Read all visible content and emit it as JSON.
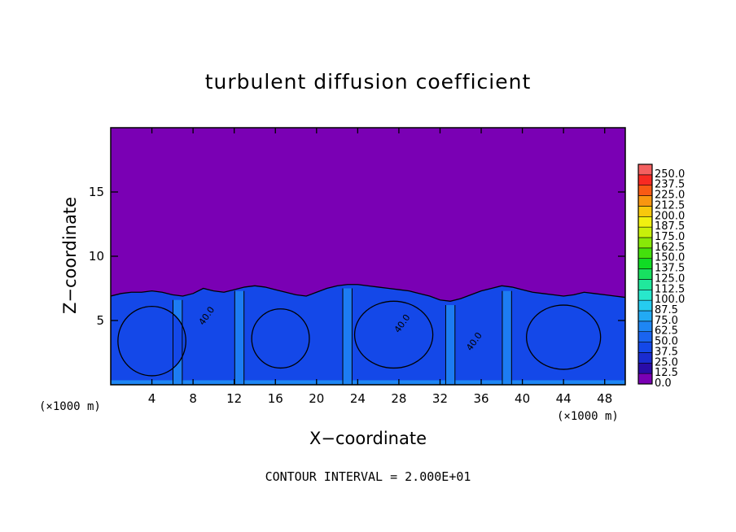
{
  "chart_data": {
    "type": "heatmap",
    "title": "turbulent diffusion coefficient",
    "xlabel": "X−coordinate",
    "ylabel": "Z−coordinate",
    "x_unit": "(×1000 m)",
    "z_unit": "(×1000 m)",
    "note": "CONTOUR INTERVAL = 2.000E+01",
    "xlim": [
      0,
      50
    ],
    "ylim": [
      0,
      20
    ],
    "x_ticks": [
      4,
      8,
      12,
      16,
      20,
      24,
      28,
      32,
      36,
      40,
      44,
      48
    ],
    "y_ticks": [
      5,
      10,
      15
    ],
    "contour_labels": [
      "40.0",
      "40.0",
      "40.0"
    ],
    "colorbar": {
      "levels": [
        "0.0",
        "12.5",
        "25.0",
        "37.5",
        "50.0",
        "62.5",
        "75.0",
        "87.5",
        "100.0",
        "112.5",
        "125.0",
        "137.5",
        "150.0",
        "162.5",
        "175.0",
        "187.5",
        "200.0",
        "212.5",
        "225.0",
        "237.5",
        "250.0"
      ],
      "colors": [
        "#7a00b4",
        "#2a0ca8",
        "#1a2cd0",
        "#1448e8",
        "#1a64f0",
        "#1e86f4",
        "#22aaf4",
        "#26ccf0",
        "#28e8cc",
        "#20e89c",
        "#18e060",
        "#10dc24",
        "#44e00c",
        "#88e808",
        "#c8f00a",
        "#f0f010",
        "#f8c80c",
        "#f89610",
        "#f85a14",
        "#f82a22",
        "#f46060"
      ]
    },
    "boundary_layer_top": [
      6.9,
      7.1,
      7.2,
      7.2,
      7.3,
      7.2,
      7.0,
      6.9,
      7.1,
      7.5,
      7.3,
      7.2,
      7.4,
      7.6,
      7.7,
      7.6,
      7.4,
      7.2,
      7.0,
      6.9,
      7.2,
      7.5,
      7.7,
      7.8,
      7.8,
      7.7,
      7.6,
      7.5,
      7.4,
      7.3,
      7.1,
      6.9,
      6.6,
      6.5,
      6.7,
      7.0,
      7.3,
      7.5,
      7.7,
      7.6,
      7.4,
      7.2,
      7.1,
      7.0,
      6.9,
      7.0,
      7.2,
      7.1,
      7.0,
      6.9,
      6.8
    ],
    "convective_cells": [
      {
        "center_x": 4,
        "center_z": 3.4,
        "radius_x": 3.3,
        "radius_z": 2.7,
        "level": 37.5
      },
      {
        "center_x": 16.5,
        "center_z": 3.6,
        "radius_x": 2.8,
        "radius_z": 2.3,
        "level": 37.5
      },
      {
        "center_x": 27.5,
        "center_z": 3.9,
        "radius_x": 3.8,
        "radius_z": 2.6,
        "level": 37.5
      },
      {
        "center_x": 44,
        "center_z": 3.7,
        "radius_x": 3.6,
        "radius_z": 2.5,
        "level": 37.5
      }
    ],
    "updrafts": [
      {
        "x": 6.5,
        "level": 62.5
      },
      {
        "x": 12.5,
        "level": 62.5
      },
      {
        "x": 23,
        "level": 62.5
      },
      {
        "x": 33,
        "level": 62.5
      },
      {
        "x": 38.5,
        "level": 62.5
      }
    ]
  }
}
